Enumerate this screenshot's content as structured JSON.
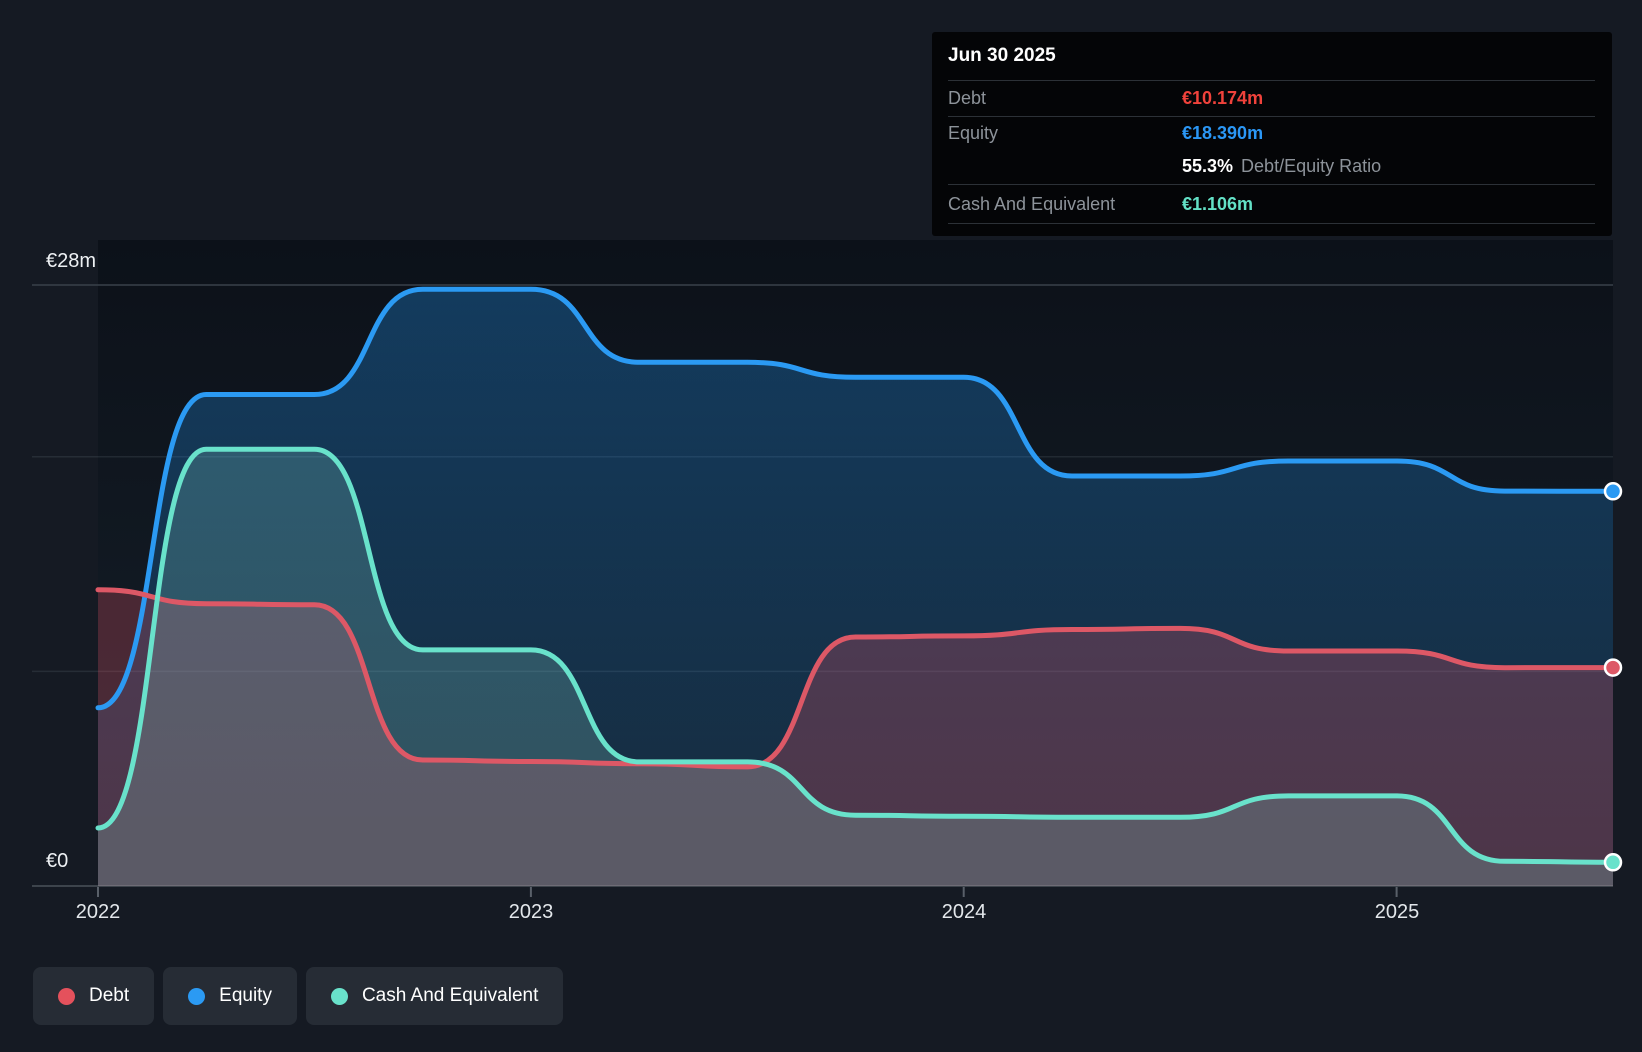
{
  "y_axis": {
    "top": "€28m",
    "bottom": "€0"
  },
  "x_axis": {
    "years": [
      "2022",
      "2023",
      "2024",
      "2025"
    ]
  },
  "tooltip": {
    "date": "Jun 30 2025",
    "debt_label": "Debt",
    "debt_value": "€10.174m",
    "equity_label": "Equity",
    "equity_value": "€18.390m",
    "ratio_value": "55.3%",
    "ratio_label": "Debt/Equity Ratio",
    "cash_label": "Cash And Equivalent",
    "cash_value": "€1.106m"
  },
  "legend": {
    "items": [
      {
        "label": "Debt",
        "color": "#e4515c"
      },
      {
        "label": "Equity",
        "color": "#2b9af3"
      },
      {
        "label": "Cash And Equivalent",
        "color": "#69e2cb"
      }
    ]
  },
  "colors": {
    "page_bg": "#151a23",
    "plot_bg_top": "#0c1119",
    "plot_bg_bottom": "#16202a",
    "equity_line": "#2b9af3",
    "debt_line": "#dd5866",
    "cash_line": "#69e2cb",
    "equity_fill_top": "rgba(33,150,243,0.32)",
    "equity_fill_bottom": "rgba(33,150,243,0.10)",
    "debt_fill": "rgba(224,82,98,0.27)",
    "cash_fill": "rgba(141,219,204,0.22)",
    "gridline_top": "#3a414a",
    "gridline_minor": "rgba(200,212,224,0.10)",
    "baseline": "#3d444c",
    "tick": "#596069",
    "dot_ring": "#ffffff"
  },
  "chart_data": {
    "type": "area",
    "title": "Debt, Equity and Cash history (€ millions)",
    "x_years": [
      2022.0,
      2022.25,
      2022.5,
      2022.75,
      2023.0,
      2023.25,
      2023.5,
      2023.75,
      2024.0,
      2024.25,
      2024.5,
      2024.75,
      2025.0,
      2025.25,
      2025.5
    ],
    "series": [
      {
        "name": "Equity",
        "color": "#2b9af3",
        "values": [
          8.3,
          22.9,
          22.9,
          27.8,
          27.8,
          24.4,
          24.4,
          23.7,
          23.7,
          19.1,
          19.1,
          19.8,
          19.8,
          18.4,
          18.39
        ]
      },
      {
        "name": "Debt",
        "color": "#dd5866",
        "values": [
          13.8,
          13.15,
          13.1,
          5.87,
          5.8,
          5.7,
          5.55,
          11.6,
          11.65,
          11.95,
          12.0,
          10.95,
          10.95,
          10.17,
          10.174
        ]
      },
      {
        "name": "Cash And Equivalent",
        "color": "#69e2cb",
        "values": [
          2.7,
          20.35,
          20.35,
          11.0,
          11.0,
          5.78,
          5.78,
          3.3,
          3.25,
          3.2,
          3.2,
          4.2,
          4.2,
          1.15,
          1.106
        ]
      }
    ],
    "ylim": [
      0,
      28
    ],
    "y_gridlines_eur_m": [
      28,
      20,
      10,
      0
    ],
    "x_ticks_years": [
      2022,
      2023,
      2024,
      2025
    ],
    "legend_position": "bottom-left",
    "grid": true,
    "last_point": {
      "date": "Jun 30 2025",
      "debt_eur_m": 10.174,
      "equity_eur_m": 18.39,
      "cash_eur_m": 1.106,
      "debt_equity_ratio_pct": 55.3
    }
  }
}
